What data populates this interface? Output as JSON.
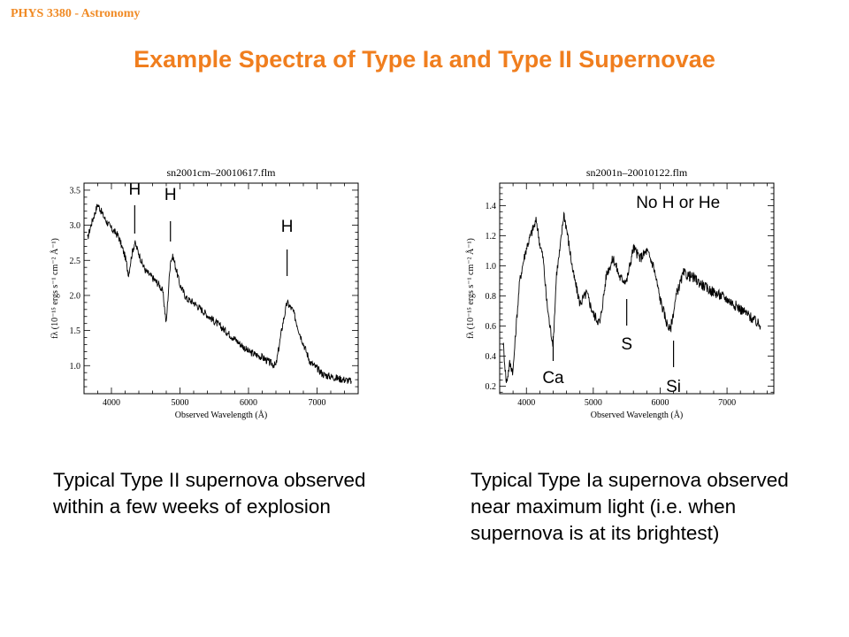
{
  "header": {
    "course": "PHYS 3380 - Astronomy"
  },
  "title": "Example Spectra of Type Ia and Type II Supernovae",
  "captions": {
    "left": "Typical Type II supernova observed within a few weeks of explosion",
    "right": "Typical Type Ia supernova observed near maximum light (i.e. when supernova is at its brightest)"
  },
  "chart_data": [
    {
      "type": "line",
      "title": "sn2001cm–20010617.flm",
      "xlabel": "Observed Wavelength (Å)",
      "ylabel": "fλ (10⁻¹⁵ ergs s⁻¹ cm⁻² Å⁻¹)",
      "xlim": [
        3600,
        7600
      ],
      "ylim": [
        0.6,
        3.6
      ],
      "xticks": [
        4000,
        5000,
        6000,
        7000
      ],
      "yticks": [
        1.0,
        1.5,
        2.0,
        2.5,
        3.0,
        3.5
      ],
      "ytick_labels": [
        "1.0",
        "1.5",
        "2.0",
        "2.5",
        "3.0",
        "3.5"
      ],
      "line_color": "#000000",
      "series": [
        {
          "x": [
            3650,
            3700,
            3800,
            3900,
            4000,
            4100,
            4150,
            4200,
            4250,
            4300,
            4340,
            4400,
            4450,
            4500,
            4600,
            4700,
            4750,
            4800,
            4861,
            4900,
            4950,
            5000,
            5100,
            5200,
            5400,
            5600,
            5800,
            6000,
            6200,
            6300,
            6400,
            6500,
            6563,
            6650,
            6750,
            6900,
            7100,
            7300,
            7500
          ],
          "y": [
            2.8,
            3.0,
            3.3,
            3.1,
            2.95,
            2.85,
            2.7,
            2.55,
            2.3,
            2.6,
            2.75,
            2.6,
            2.45,
            2.35,
            2.25,
            2.15,
            2.05,
            1.6,
            2.5,
            2.55,
            2.35,
            2.15,
            1.95,
            1.9,
            1.72,
            1.55,
            1.38,
            1.2,
            1.12,
            1.05,
            1.0,
            1.6,
            1.9,
            1.78,
            1.45,
            1.05,
            0.87,
            0.82,
            0.78
          ]
        }
      ],
      "annotations": [
        {
          "label": "H",
          "x": 4340
        },
        {
          "label": "H",
          "x": 4861
        },
        {
          "label": "H",
          "x": 6563
        }
      ]
    },
    {
      "type": "line",
      "title": "sn2001n–20010122.flm",
      "xlabel": "Observed Wavelength (Å)",
      "ylabel": "fλ (10⁻¹⁵ ergs s⁻¹ cm⁻² Å⁻¹)",
      "xlim": [
        3600,
        7700
      ],
      "ylim": [
        0.15,
        1.55
      ],
      "xticks": [
        4000,
        5000,
        6000,
        7000
      ],
      "yticks": [
        0.2,
        0.4,
        0.6,
        0.8,
        1.0,
        1.2,
        1.4
      ],
      "ytick_labels": [
        "0.2",
        "0.4",
        "0.6",
        "0.8",
        "1.0",
        "1.2",
        "1.4"
      ],
      "line_color": "#000000",
      "series": [
        {
          "x": [
            3650,
            3700,
            3750,
            3800,
            3850,
            3900,
            3950,
            4000,
            4100,
            4150,
            4200,
            4250,
            4300,
            4350,
            4400,
            4450,
            4500,
            4560,
            4600,
            4700,
            4800,
            4900,
            5000,
            5100,
            5200,
            5300,
            5400,
            5500,
            5600,
            5700,
            5800,
            5900,
            6000,
            6100,
            6150,
            6250,
            6350,
            6500,
            6700,
            7000,
            7300,
            7500
          ],
          "y": [
            0.5,
            0.22,
            0.35,
            0.3,
            0.62,
            0.9,
            1.02,
            1.12,
            1.25,
            1.3,
            1.15,
            1.05,
            0.78,
            0.6,
            0.48,
            0.95,
            1.1,
            1.35,
            1.25,
            0.95,
            0.75,
            0.82,
            0.68,
            0.62,
            0.95,
            1.05,
            0.92,
            0.9,
            1.12,
            1.05,
            1.1,
            1.0,
            0.78,
            0.62,
            0.57,
            0.82,
            0.95,
            0.92,
            0.85,
            0.78,
            0.68,
            0.6
          ]
        }
      ],
      "annotations": [
        {
          "label": "No H or He",
          "x": 6400,
          "y": 1.44
        },
        {
          "label": "Ca",
          "x": 4400
        },
        {
          "label": "S",
          "x": 5500
        },
        {
          "label": "Si",
          "x": 6200
        }
      ]
    }
  ]
}
